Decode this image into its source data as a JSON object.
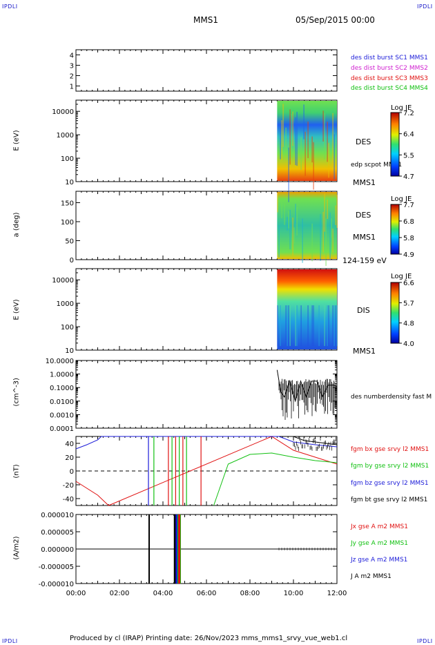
{
  "corner_label": "IPDLI",
  "header": {
    "spacecraft": "MMS1",
    "date": "05/Sep/2015 00:00"
  },
  "footer": "Produced by cl (IRAP)   Printing date: 26/Nov/2023   mms_mms1_srvy_vue_web1.cl",
  "panels": {
    "p1": {
      "yticks": [
        "4",
        "3",
        "2",
        "1"
      ],
      "labels": [
        {
          "text": "des dist burst SC1 MMS1",
          "color": "#1a1ad8"
        },
        {
          "text": "des dist burst SC2 MMS2",
          "color": "#d020d0"
        },
        {
          "text": "des dist burst SC3 MMS3",
          "color": "#e01010"
        },
        {
          "text": "des dist burst SC4 MMS4",
          "color": "#10c010"
        }
      ]
    },
    "p2": {
      "ylabel": "E (eV)",
      "yticks": [
        "10000",
        "1000",
        "100",
        "10"
      ],
      "species": "DES",
      "extra": "edp scpot MMS1",
      "sc": "MMS1",
      "cbar": {
        "title": "Log JE",
        "ticks": [
          "7.2",
          "6.4",
          "5.5",
          "4.7"
        ]
      }
    },
    "p3": {
      "ylabel": "a (deg)",
      "yticks": [
        "150",
        "100",
        "50",
        "0"
      ],
      "species": "DES",
      "sc": "MMS1",
      "range": "124-159 eV",
      "cbar": {
        "title": "Log JE",
        "ticks": [
          "7.7",
          "6.8",
          "5.8",
          "4.9"
        ]
      }
    },
    "p4": {
      "ylabel": "E (eV)",
      "yticks": [
        "10000",
        "1000",
        "100",
        "10"
      ],
      "species": "DIS",
      "sc": "MMS1",
      "cbar": {
        "title": "Log JE",
        "ticks": [
          "6.6",
          "5.7",
          "4.8",
          "4.0"
        ]
      }
    },
    "p5": {
      "ylabel": "(cm^-3)",
      "yticks": [
        "10.0000",
        "1.0000",
        "0.1000",
        "0.0100",
        "0.0010",
        "0.0001"
      ],
      "label": "des numberdensity fast M"
    },
    "p6": {
      "ylabel": "(nT)",
      "yticks": [
        "40",
        "20",
        "0",
        "-20",
        "-40"
      ],
      "labels": [
        {
          "text": "fgm bx gse srvy l2 MMS1",
          "color": "#e01010"
        },
        {
          "text": "fgm by gse srvy l2 MMS1",
          "color": "#10c010"
        },
        {
          "text": "fgm bz gse srvy l2 MMS1",
          "color": "#1a1ad8"
        },
        {
          "text": "fgm bt gse srvy l2 MMS1",
          "color": "#000000"
        }
      ]
    },
    "p7": {
      "ylabel": "(A/m2)",
      "yticks": [
        "0.000010",
        "0.000005",
        "0.000000",
        "-0.000005",
        "-0.000010"
      ],
      "labels": [
        {
          "text": "Jx gse A m2 MMS1",
          "color": "#e01010"
        },
        {
          "text": "Jy gse A m2 MMS1",
          "color": "#10c010"
        },
        {
          "text": "Jz gse A m2 MMS1",
          "color": "#1a1ad8"
        },
        {
          "text": "J A m2 MMS1",
          "color": "#000000"
        }
      ]
    }
  },
  "chart_data": [
    {
      "type": "line",
      "title": "",
      "ylabel": "",
      "yticks": [
        1,
        2,
        3,
        4
      ],
      "ylim": [
        0.5,
        4.5
      ],
      "series": [
        {
          "name": "des dist burst SC1 MMS1",
          "values": []
        },
        {
          "name": "des dist burst SC2 MMS2",
          "values": []
        },
        {
          "name": "des dist burst SC3 MMS3",
          "values": []
        },
        {
          "name": "des dist burst SC4 MMS4",
          "values": []
        }
      ]
    },
    {
      "type": "heatmap",
      "ylabel": "E (eV)",
      "yscale": "log",
      "ylim": [
        10,
        30000
      ],
      "data_start": "09:15",
      "data_end": "12:00",
      "colorbar": "Log JE",
      "clim": [
        4.7,
        7.2
      ]
    },
    {
      "type": "heatmap",
      "ylabel": "a (deg)",
      "ylim": [
        0,
        180
      ],
      "data_start": "09:15",
      "data_end": "12:00",
      "colorbar": "Log JE",
      "clim": [
        4.9,
        7.7
      ]
    },
    {
      "type": "heatmap",
      "ylabel": "E (eV)",
      "yscale": "log",
      "ylim": [
        10,
        30000
      ],
      "data_start": "09:15",
      "data_end": "12:00",
      "colorbar": "Log JE",
      "clim": [
        4.0,
        6.6
      ]
    },
    {
      "type": "line",
      "ylabel": "(cm^-3)",
      "yscale": "log",
      "ylim": [
        0.0001,
        10
      ],
      "series": [
        {
          "name": "des numberdensity fast M",
          "x": [
            "09:15",
            "09:25",
            "09:35",
            "09:50",
            "10:05",
            "10:20",
            "10:35",
            "10:50",
            "11:05",
            "11:20",
            "11:35",
            "11:50",
            "12:00"
          ],
          "values": [
            2.0,
            0.05,
            0.02,
            0.3,
            0.01,
            0.3,
            0.02,
            0.3,
            0.3,
            0.02,
            0.15,
            0.15,
            0.12
          ]
        }
      ]
    },
    {
      "type": "line",
      "ylabel": "(nT)",
      "ylim": [
        -50,
        50
      ],
      "series": [
        {
          "name": "fgm bx gse srvy l2 MMS1",
          "x": [
            "00:00",
            "01:00",
            "01:30",
            "09:00",
            "10:00",
            "11:00",
            "12:00"
          ],
          "values": [
            -15,
            -35,
            -50,
            50,
            30,
            20,
            10
          ]
        },
        {
          "name": "fgm by gse srvy l2 MMS1",
          "x": [
            "06:20",
            "07:00",
            "08:00",
            "09:00",
            "10:00",
            "11:00",
            "12:00"
          ],
          "values": [
            -50,
            10,
            24,
            26,
            20,
            15,
            12
          ]
        },
        {
          "name": "fgm bz gse srvy l2 MMS1",
          "x": [
            "00:00",
            "00:30",
            "01:00",
            "01:10",
            "09:20",
            "10:00",
            "11:00",
            "12:00"
          ],
          "values": [
            32,
            38,
            45,
            50,
            50,
            42,
            38,
            35
          ]
        },
        {
          "name": "fgm bt gse srvy l2 MMS1",
          "x": [
            "10:00",
            "10:30",
            "11:00",
            "11:30",
            "12:00"
          ],
          "values": [
            50,
            44,
            42,
            40,
            38
          ]
        }
      ]
    },
    {
      "type": "line",
      "ylabel": "(A/m2)",
      "ylim": [
        -1e-05,
        1e-05
      ],
      "series": [
        {
          "name": "Jx gse A m2 MMS1",
          "values": []
        },
        {
          "name": "Jy gse A m2 MMS1",
          "values": []
        },
        {
          "name": "Jz gse A m2 MMS1",
          "values": []
        },
        {
          "name": "J A m2 MMS1",
          "values": []
        }
      ]
    }
  ],
  "x_axis": {
    "ticks": [
      "00:00",
      "02:00",
      "04:00",
      "06:00",
      "08:00",
      "10:00",
      "12:00"
    ]
  }
}
